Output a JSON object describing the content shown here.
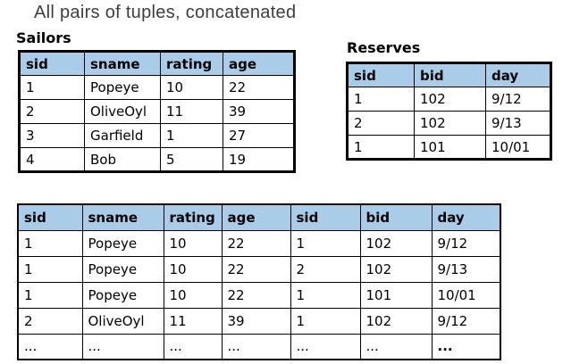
{
  "title": "All pairs of tuples, concatenated",
  "colors": {
    "header_bg": "#A9CCE9",
    "border": "#000000",
    "title_text": "#3d3d3d"
  },
  "sailors": {
    "label": "Sailors",
    "headers": [
      "sid",
      "sname",
      "rating",
      "age"
    ],
    "rows": [
      [
        "1",
        "Popeye",
        "10",
        "22"
      ],
      [
        "2",
        "OliveOyl",
        "11",
        "39"
      ],
      [
        "3",
        "Garfield",
        "1",
        "27"
      ],
      [
        "4",
        "Bob",
        "5",
        "19"
      ]
    ]
  },
  "reserves": {
    "label": "Reserves",
    "headers": [
      "sid",
      "bid",
      "day"
    ],
    "rows": [
      [
        "1",
        "102",
        "9/12"
      ],
      [
        "2",
        "102",
        "9/13"
      ],
      [
        "1",
        "101",
        "10/01"
      ]
    ]
  },
  "result": {
    "headers": [
      "sid",
      "sname",
      "rating",
      "age",
      "sid",
      "bid",
      "day"
    ],
    "rows": [
      [
        "1",
        "Popeye",
        "10",
        "22",
        "1",
        "102",
        "9/12"
      ],
      [
        "1",
        "Popeye",
        "10",
        "22",
        "2",
        "102",
        "9/13"
      ],
      [
        "1",
        "Popeye",
        "10",
        "22",
        "1",
        "101",
        "10/01"
      ],
      [
        "2",
        "OliveOyl",
        "11",
        "39",
        "1",
        "102",
        "9/12"
      ],
      [
        "...",
        "...",
        "...",
        "...",
        "...",
        "...",
        "..."
      ]
    ]
  }
}
